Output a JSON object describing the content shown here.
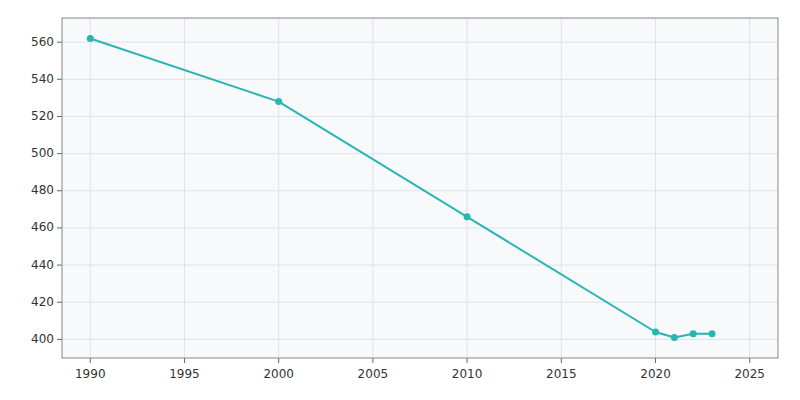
{
  "chart_data": {
    "type": "line",
    "x": [
      1990,
      2000,
      2010,
      2020,
      2021,
      2022,
      2023
    ],
    "values": [
      562,
      528,
      466,
      404,
      401,
      403,
      403
    ],
    "color": "#2AB5B5",
    "marker": "circle",
    "xlim": [
      1988.5,
      2026.5
    ],
    "ylim": [
      390,
      573
    ],
    "xticks": [
      1990,
      1995,
      2000,
      2005,
      2010,
      2015,
      2020,
      2025
    ],
    "yticks": [
      400,
      420,
      440,
      460,
      480,
      500,
      520,
      540,
      560
    ],
    "grid": true
  }
}
